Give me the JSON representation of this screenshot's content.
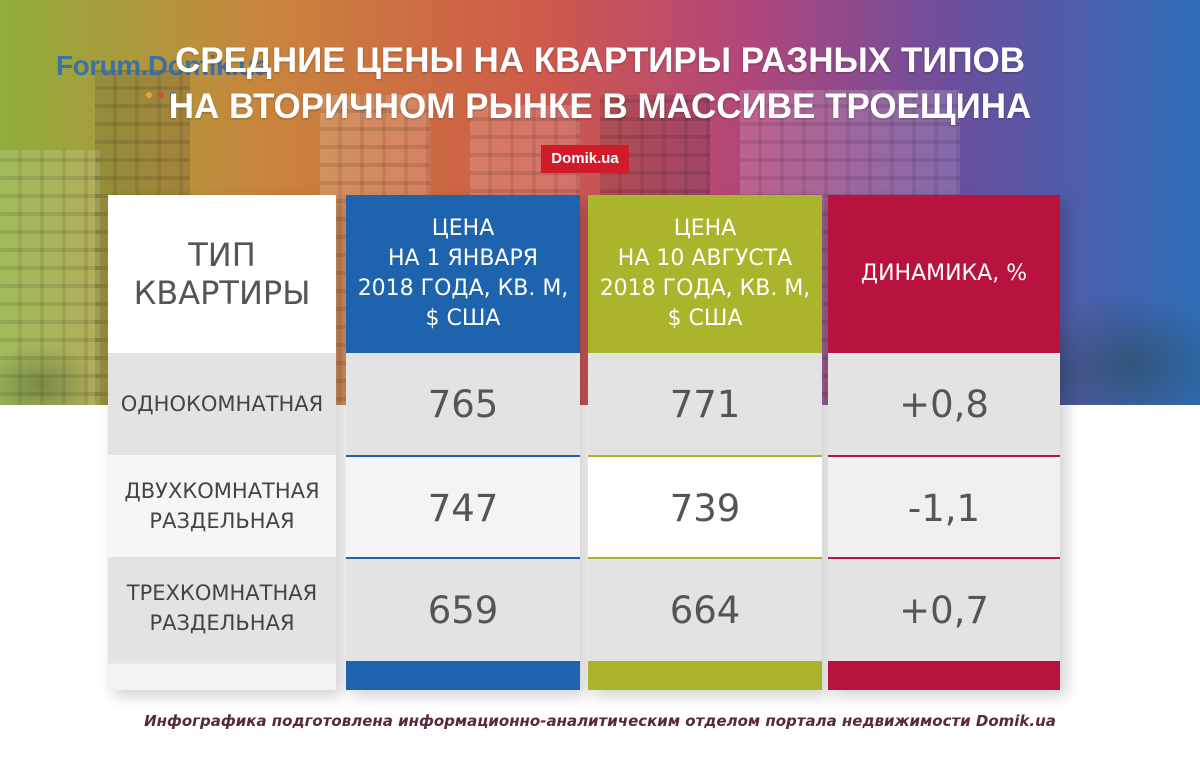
{
  "watermark": "Forum.Domik.ua",
  "title": {
    "line1": "СРЕДНИЕ ЦЕНЫ НА КВАРТИРЫ РАЗНЫХ ТИПОВ",
    "line2": "НА ВТОРИЧНОМ РЫНКЕ В МАССИВЕ ТРОЕЩИНА"
  },
  "badge": "Domik.ua",
  "colors": {
    "blue": "#1e63ad",
    "olive": "#aab52b",
    "crimson": "#b8123e",
    "badge": "#d11a2a"
  },
  "chart_data": {
    "type": "table",
    "columns": [
      "ТИП КВАРТИРЫ",
      "ЦЕНА НА 1 ЯНВАРЯ 2018 ГОДА, КВ. М, $ США",
      "ЦЕНА НА 10 АВГУСТА 2018 ГОДА, КВ. М, $ США",
      "ДИНАМИКА, %"
    ],
    "header_lines": {
      "type": [
        "ТИП",
        "КВАРТИРЫ"
      ],
      "jan": [
        "ЦЕНА",
        "НА 1 ЯНВАРЯ",
        "2018 ГОДА, КВ. М,",
        "$ США"
      ],
      "aug": [
        "ЦЕНА",
        "НА 10 АВГУСТА",
        "2018 ГОДА, КВ. М,",
        "$ США"
      ],
      "change": [
        "ДИНАМИКА, %"
      ]
    },
    "rows": [
      {
        "type": [
          "ОДНОКОМНАТНАЯ"
        ],
        "jan": "765",
        "aug": "771",
        "change": "+0,8"
      },
      {
        "type": [
          "ДВУХКОМНАТНАЯ",
          "РАЗДЕЛЬНАЯ"
        ],
        "jan": "747",
        "aug": "739",
        "change": "-1,1"
      },
      {
        "type": [
          "ТРЕХКОМНАТНАЯ",
          "РАЗДЕЛЬНАЯ"
        ],
        "jan": "659",
        "aug": "664",
        "change": "+0,7"
      }
    ]
  },
  "footer": "Инфографика подготовлена информационно-аналитическим отделом портала недвижимости Domik.ua"
}
